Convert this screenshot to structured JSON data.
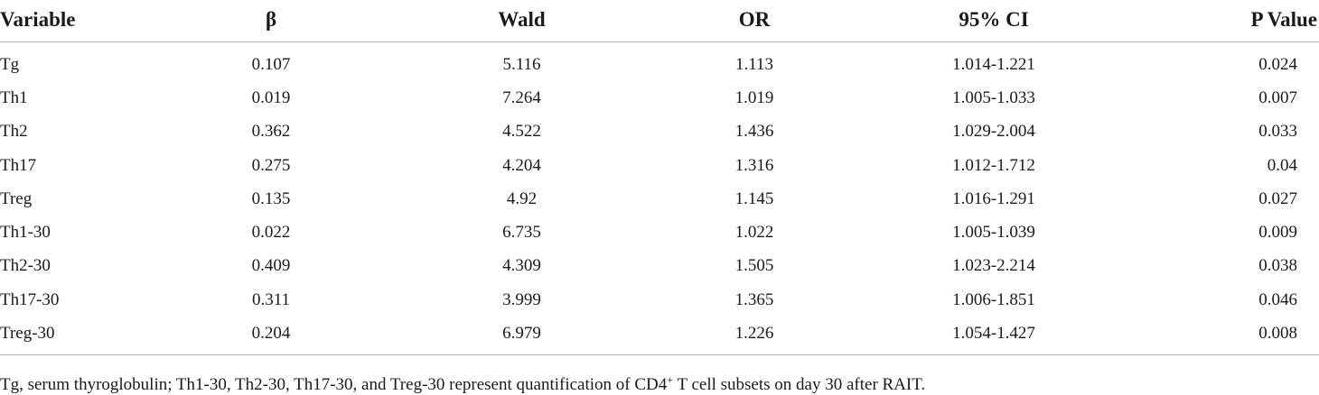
{
  "table": {
    "headers": [
      "Variable",
      "β",
      "Wald",
      "OR",
      "95% CI",
      "P Value"
    ],
    "rows": [
      [
        "Tg",
        "0.107",
        "5.116",
        "1.113",
        "1.014-1.221",
        "0.024"
      ],
      [
        "Th1",
        "0.019",
        "7.264",
        "1.019",
        "1.005-1.033",
        "0.007"
      ],
      [
        "Th2",
        "0.362",
        "4.522",
        "1.436",
        "1.029-2.004",
        "0.033"
      ],
      [
        "Th17",
        "0.275",
        "4.204",
        "1.316",
        "1.012-1.712",
        "0.04"
      ],
      [
        "Treg",
        "0.135",
        "4.92",
        "1.145",
        "1.016-1.291",
        "0.027"
      ],
      [
        "Th1-30",
        "0.022",
        "6.735",
        "1.022",
        "1.005-1.039",
        "0.009"
      ],
      [
        "Th2-30",
        "0.409",
        "4.309",
        "1.505",
        "1.023-2.214",
        "0.038"
      ],
      [
        "Th17-30",
        "0.311",
        "3.999",
        "1.365",
        "1.006-1.851",
        "0.046"
      ],
      [
        "Treg-30",
        "0.204",
        "6.979",
        "1.226",
        "1.054-1.427",
        "0.008"
      ]
    ]
  },
  "footnote": {
    "before_sup": "Tg, serum thyroglobulin; Th1-30, Th2-30, Th17-30, and Treg-30 represent quantification of CD4",
    "sup": "+",
    "after_sup": " T cell subsets on day 30 after RAIT."
  }
}
